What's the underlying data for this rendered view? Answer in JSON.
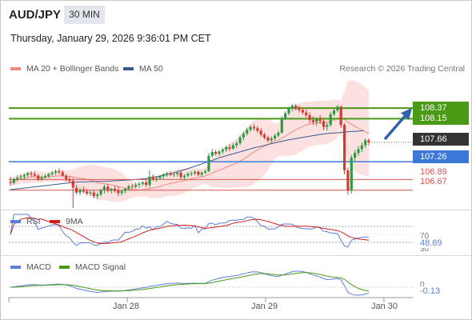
{
  "header": {
    "symbol": "AUD/JPY",
    "timeframe": "30 MIN",
    "datetime": "Thursday, January 29, 2026 9:36:01 PM CET",
    "credit": "Research © 2026 Trading Central"
  },
  "legends": {
    "ma20": "MA 20 + Bollinger Bands",
    "ma50": "MA 50",
    "rsi": "RSI",
    "rsi_ma": "9MA",
    "macd": "MACD",
    "macd_signal": "MACD Signal"
  },
  "colors": {
    "ma20": "#f08a80",
    "ma50": "#3a5a8c",
    "bollinger_fill": "#fbdcdc",
    "resistance": "#4a9a16",
    "support_blue": "#3c78d8",
    "support_red": "#d9534f",
    "candle_up": "#2e9b46",
    "candle_down": "#d63a2f",
    "current_price": "#333333",
    "rsi": "#5a7fd8",
    "rsi_ma": "#d11f1f",
    "macd": "#5a7fd8",
    "macd_signal": "#4a9a16",
    "arrow": "#2f62a8"
  },
  "chart_data": {
    "type": "candlestick",
    "x_ticks": [
      "Jan 28",
      "Jan 29",
      "Jan 30"
    ],
    "y_range": [
      106.3,
      108.62
    ],
    "levels": [
      {
        "value": 108.37,
        "label": "108.37",
        "kind": "resistance"
      },
      {
        "value": 108.15,
        "label": "108.15",
        "kind": "resistance"
      },
      {
        "value": 107.66,
        "label": "107.66",
        "kind": "current"
      },
      {
        "value": 107.26,
        "label": "107.26",
        "kind": "support_blue"
      },
      {
        "value": 106.89,
        "label": "106.89",
        "kind": "support_red"
      },
      {
        "value": 106.67,
        "label": "106.67",
        "kind": "support_red"
      }
    ],
    "candles": [
      [
        106.84,
        106.95,
        106.76,
        106.82
      ],
      [
        106.82,
        106.93,
        106.78,
        106.9
      ],
      [
        106.9,
        106.98,
        106.85,
        106.93
      ],
      [
        106.93,
        107.0,
        106.88,
        106.95
      ],
      [
        106.95,
        107.02,
        106.9,
        106.98
      ],
      [
        106.98,
        107.05,
        106.94,
        107.02
      ],
      [
        107.02,
        107.06,
        106.95,
        107.0
      ],
      [
        107.0,
        107.06,
        106.95,
        106.97
      ],
      [
        106.97,
        107.0,
        106.86,
        106.9
      ],
      [
        106.9,
        106.97,
        106.86,
        106.93
      ],
      [
        106.93,
        107.0,
        106.9,
        106.96
      ],
      [
        106.96,
        107.03,
        106.92,
        107.0
      ],
      [
        107.0,
        107.07,
        106.96,
        107.03
      ],
      [
        107.03,
        107.1,
        106.98,
        107.06
      ],
      [
        107.06,
        107.12,
        107.0,
        107.04
      ],
      [
        107.04,
        107.08,
        106.94,
        106.97
      ],
      [
        106.97,
        107.0,
        106.85,
        106.89
      ],
      [
        106.89,
        106.95,
        106.82,
        106.86
      ],
      [
        106.86,
        106.92,
        106.3,
        106.72
      ],
      [
        106.72,
        106.78,
        106.58,
        106.62
      ],
      [
        106.62,
        106.72,
        106.56,
        106.68
      ],
      [
        106.68,
        106.74,
        106.6,
        106.64
      ],
      [
        106.64,
        106.69,
        106.56,
        106.6
      ],
      [
        106.6,
        106.66,
        106.55,
        106.62
      ],
      [
        106.62,
        106.68,
        106.5,
        106.55
      ],
      [
        106.55,
        106.62,
        106.48,
        106.58
      ],
      [
        106.58,
        106.7,
        106.54,
        106.67
      ],
      [
        106.67,
        106.78,
        106.6,
        106.74
      ],
      [
        106.74,
        106.8,
        106.62,
        106.66
      ],
      [
        106.66,
        106.72,
        106.6,
        106.7
      ],
      [
        106.7,
        106.76,
        106.62,
        106.66
      ],
      [
        106.66,
        106.74,
        106.55,
        106.61
      ],
      [
        106.61,
        106.68,
        106.56,
        106.65
      ],
      [
        106.65,
        106.72,
        106.6,
        106.7
      ],
      [
        106.7,
        106.78,
        106.66,
        106.75
      ],
      [
        106.75,
        106.8,
        106.7,
        106.74
      ],
      [
        106.74,
        106.82,
        106.7,
        106.78
      ],
      [
        106.78,
        106.84,
        106.72,
        106.8
      ],
      [
        106.8,
        106.86,
        106.76,
        106.83
      ],
      [
        106.83,
        106.88,
        106.74,
        106.78
      ],
      [
        106.78,
        107.08,
        106.72,
        106.95
      ],
      [
        106.95,
        107.0,
        106.86,
        106.9
      ],
      [
        106.9,
        106.95,
        106.84,
        106.92
      ],
      [
        106.92,
        106.98,
        106.88,
        106.96
      ],
      [
        106.96,
        107.02,
        106.9,
        107.0
      ],
      [
        107.0,
        107.05,
        106.94,
        107.02
      ],
      [
        107.02,
        107.06,
        106.96,
        106.99
      ],
      [
        106.99,
        107.04,
        106.94,
        107.0
      ],
      [
        107.0,
        107.06,
        106.95,
        107.03
      ],
      [
        107.03,
        107.06,
        106.9,
        106.94
      ],
      [
        106.94,
        107.0,
        106.89,
        106.97
      ],
      [
        106.97,
        107.04,
        106.93,
        107.01
      ],
      [
        107.01,
        107.06,
        106.96,
        107.02
      ],
      [
        107.02,
        107.08,
        106.98,
        107.05
      ],
      [
        107.05,
        107.08,
        106.96,
        106.99
      ],
      [
        106.99,
        107.06,
        106.95,
        107.03
      ],
      [
        107.03,
        107.1,
        107.0,
        107.06
      ],
      [
        107.06,
        107.44,
        107.04,
        107.38
      ],
      [
        107.38,
        107.52,
        107.34,
        107.46
      ],
      [
        107.46,
        107.5,
        107.38,
        107.42
      ],
      [
        107.42,
        107.5,
        107.38,
        107.47
      ],
      [
        107.47,
        107.55,
        107.42,
        107.51
      ],
      [
        107.51,
        107.6,
        107.46,
        107.56
      ],
      [
        107.56,
        107.62,
        107.48,
        107.53
      ],
      [
        107.53,
        107.65,
        107.5,
        107.6
      ],
      [
        107.6,
        107.68,
        107.54,
        107.64
      ],
      [
        107.64,
        107.8,
        107.6,
        107.76
      ],
      [
        107.76,
        107.88,
        107.7,
        107.84
      ],
      [
        107.84,
        107.96,
        107.8,
        107.92
      ],
      [
        107.92,
        108.02,
        107.88,
        107.98
      ],
      [
        107.98,
        108.04,
        107.9,
        107.95
      ],
      [
        107.95,
        108.0,
        107.86,
        107.9
      ],
      [
        107.9,
        107.95,
        107.78,
        107.82
      ],
      [
        107.82,
        107.86,
        107.72,
        107.76
      ],
      [
        107.76,
        107.8,
        107.66,
        107.7
      ],
      [
        107.7,
        107.78,
        107.66,
        107.74
      ],
      [
        107.74,
        107.84,
        107.7,
        107.8
      ],
      [
        107.8,
        107.9,
        107.76,
        107.86
      ],
      [
        107.86,
        108.2,
        107.84,
        108.16
      ],
      [
        108.16,
        108.3,
        108.12,
        108.26
      ],
      [
        108.26,
        108.4,
        108.22,
        108.36
      ],
      [
        108.36,
        108.46,
        108.3,
        108.42
      ],
      [
        108.42,
        108.46,
        108.32,
        108.36
      ],
      [
        108.36,
        108.42,
        108.28,
        108.33
      ],
      [
        108.33,
        108.38,
        108.24,
        108.28
      ],
      [
        108.28,
        108.34,
        108.18,
        108.22
      ],
      [
        108.22,
        108.28,
        108.06,
        108.12
      ],
      [
        108.12,
        108.2,
        108.02,
        108.08
      ],
      [
        108.08,
        108.18,
        108.0,
        108.14
      ],
      [
        108.14,
        108.22,
        108.04,
        108.1
      ],
      [
        108.1,
        108.14,
        107.92,
        107.98
      ],
      [
        107.98,
        108.06,
        107.9,
        108.02
      ],
      [
        108.02,
        108.3,
        107.98,
        108.24
      ],
      [
        108.24,
        108.38,
        108.2,
        108.32
      ],
      [
        108.32,
        108.44,
        108.28,
        108.4
      ],
      [
        108.4,
        108.42,
        107.96,
        108.02
      ],
      [
        108.02,
        108.06,
        107.0,
        107.08
      ],
      [
        107.08,
        107.14,
        106.58,
        106.66
      ],
      [
        106.66,
        107.4,
        106.6,
        107.34
      ],
      [
        107.34,
        107.5,
        107.26,
        107.44
      ],
      [
        107.44,
        107.58,
        107.38,
        107.52
      ],
      [
        107.52,
        107.66,
        107.46,
        107.6
      ],
      [
        107.6,
        107.74,
        107.54,
        107.7
      ],
      [
        107.7,
        107.74,
        107.6,
        107.66
      ]
    ],
    "ma50": [
      106.68,
      106.7,
      106.72,
      106.74,
      106.76,
      106.78,
      106.8,
      106.82,
      106.84,
      106.84,
      106.85,
      106.85,
      106.86,
      106.87,
      106.88,
      106.89,
      106.91,
      106.94,
      106.97,
      107.01,
      107.06,
      107.11,
      107.17,
      107.23,
      107.29,
      107.35,
      107.4,
      107.45,
      107.5,
      107.55,
      107.59,
      107.63,
      107.67,
      107.71,
      107.74,
      107.77,
      107.8,
      107.83,
      107.85,
      107.86,
      107.88,
      107.89,
      107.9
    ],
    "rsi": {
      "level_high": 70,
      "level_low": 30,
      "value_label": "48.69",
      "ticks": [
        "70",
        "30"
      ]
    },
    "macd": {
      "zero_label": "0",
      "value_label": "-0.13"
    }
  }
}
